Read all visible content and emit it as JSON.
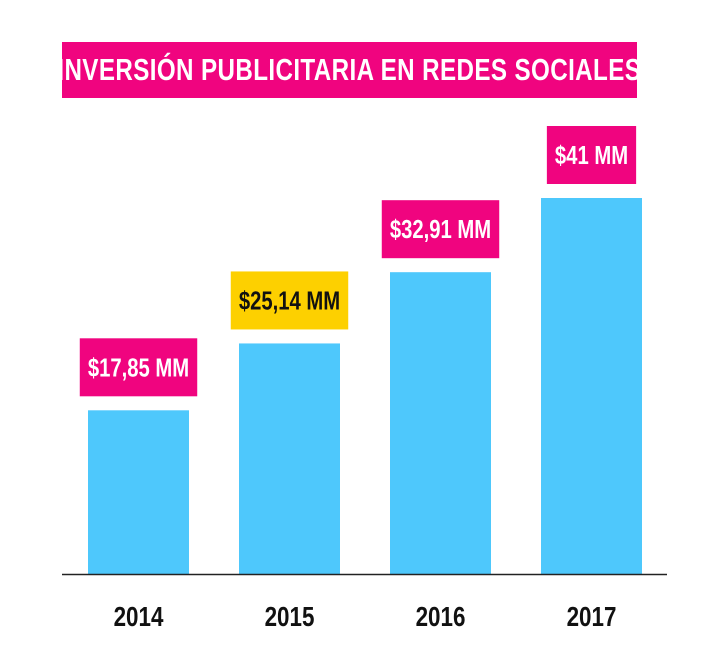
{
  "chart_data": {
    "type": "bar",
    "title": "INVERSIÓN PUBLICITARIA EN REDES SOCIALES",
    "categories": [
      "2014",
      "2015",
      "2016",
      "2017"
    ],
    "values": [
      17.85,
      25.14,
      32.91,
      41
    ],
    "data_labels": [
      "$17,85 MM",
      "$25,14 MM",
      "$32,91 MM",
      "$41 MM"
    ],
    "xlabel": "",
    "ylabel": "",
    "ylim": [
      0,
      41
    ],
    "grid": false,
    "legend": "none",
    "colors": {
      "bar": "#4ec8fc",
      "label_bg": "#f0047f",
      "label_bg_highlight": "#fdd000",
      "label_text": "#ffffff",
      "label_text_highlight": "#111111",
      "axis": "#222222",
      "title_bg": "#f0047f",
      "title_text": "#ffffff"
    },
    "highlight_index": 1
  }
}
